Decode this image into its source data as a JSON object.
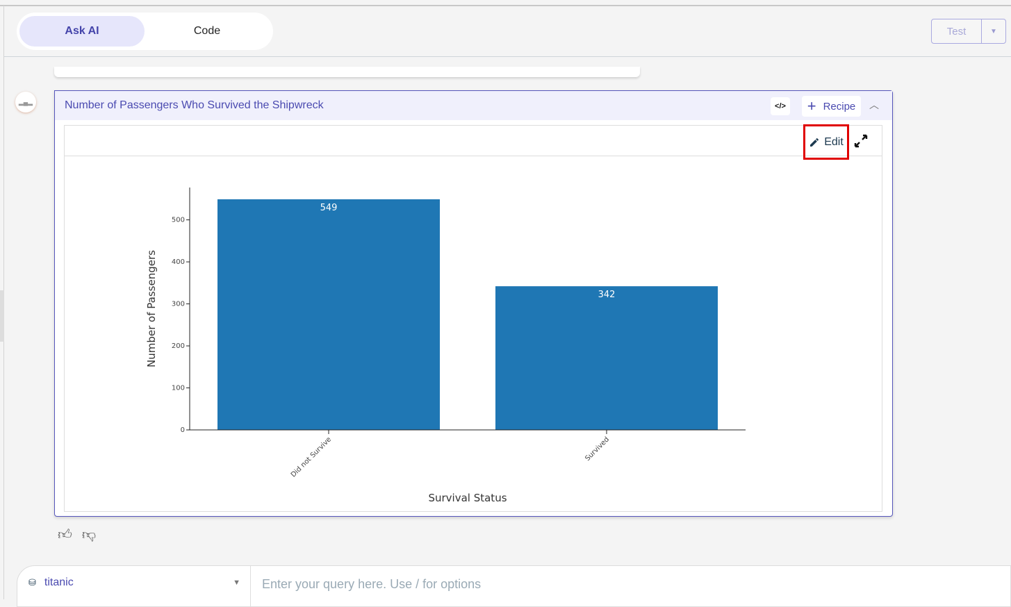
{
  "header": {
    "modes": [
      {
        "label": "Ask AI",
        "active": true
      },
      {
        "label": "Code",
        "active": false
      }
    ],
    "test_button": {
      "label": "Test",
      "dropdown_icon": "caret-down"
    }
  },
  "card": {
    "title": "Number of Passengers Who Survived the Shipwreck",
    "code_label": "</>",
    "recipe_label": "Recipe",
    "recipe_icon": "plus",
    "collapse_icon": "chevron-up",
    "edit_label": "Edit",
    "edit_icon": "pencil",
    "expand_icon": "expand-arrows",
    "avatar_icon": "bar-chart"
  },
  "chart_data": {
    "type": "bar",
    "categories": [
      "Did not Survive",
      "Survived"
    ],
    "values": [
      549,
      342
    ],
    "data_labels": [
      "549",
      "342"
    ],
    "xlabel": "Survival Status",
    "ylabel": "Number of Passengers",
    "ylim": [
      0,
      577
    ],
    "yticks": [
      0,
      100,
      200,
      300,
      400,
      500
    ],
    "ytick_labels": [
      "0",
      "100",
      "200",
      "300",
      "400",
      "500"
    ],
    "bar_color": "#1f77b4",
    "grid": false
  },
  "feedback": {
    "like_icon": "thumbs-up",
    "dislike_icon": "thumbs-down"
  },
  "input": {
    "datasource": "titanic",
    "datasource_icon": "database",
    "placeholder": "Enter your query here. Use / for options"
  }
}
